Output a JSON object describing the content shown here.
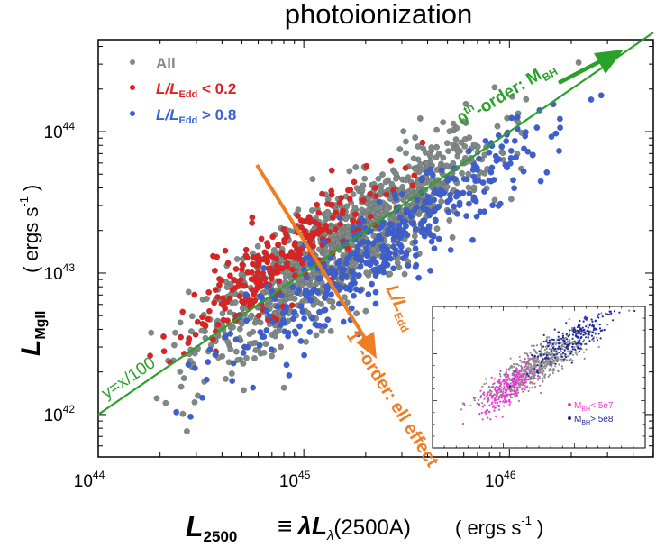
{
  "chart_data": {
    "type": "scatter",
    "title": "photoionization",
    "xlabel": {
      "main": "L",
      "sub": "2500",
      "equiv": "≡",
      "lambda": "λL",
      "lambda_sub": "λ",
      "paren": "(2500A)",
      "units": "( ergs s",
      "sup": "-1",
      "close": ")"
    },
    "ylabel": {
      "main": "L",
      "sub": "MgII",
      "units": "( ergs s",
      "sup": "-1",
      "close": ")"
    },
    "x_scale": "log",
    "y_scale": "log",
    "xlim_log10": [
      44.0,
      46.7
    ],
    "ylim_log10": [
      41.7,
      44.65
    ],
    "x_ticks": [
      {
        "base": "10",
        "exp": "44",
        "log": 44
      },
      {
        "base": "10",
        "exp": "45",
        "log": 45
      },
      {
        "base": "10",
        "exp": "46",
        "log": 46
      }
    ],
    "y_ticks": [
      {
        "base": "10",
        "exp": "42",
        "log": 42
      },
      {
        "base": "10",
        "exp": "43",
        "log": 43
      },
      {
        "base": "10",
        "exp": "44",
        "log": 44
      }
    ],
    "legend": {
      "position": "top-left",
      "entries": [
        {
          "label": "All",
          "color": "#7f8a87"
        },
        {
          "label": "L/L",
          "sub": "Edd",
          "suffix": " < 0.2",
          "color": "#e3201f"
        },
        {
          "label": "L/L",
          "sub": "Edd",
          "suffix": " > 0.8",
          "color": "#3a5fd9"
        }
      ]
    },
    "series": [
      {
        "name": "All",
        "color": "#7f8a87",
        "count": 1100,
        "center_x": 45.2,
        "spread_x": 0.36,
        "y_relation": "y = x - 2",
        "scatter_y": 0.19
      },
      {
        "name": "L/L_Edd < 0.2",
        "color": "#e3201f",
        "count": 260,
        "center_x": 44.85,
        "spread_x": 0.25,
        "y_offset": 0.2,
        "scatter_y": 0.15
      },
      {
        "name": "L/L_Edd > 0.8",
        "color": "#3a5fd9",
        "count": 420,
        "center_x": 45.4,
        "spread_x": 0.4,
        "y_offset": -0.2,
        "scatter_y": 0.15
      }
    ],
    "fit_line": {
      "label": "y=x/100",
      "color": "#2aa12a",
      "x_range": [
        44.0,
        46.7
      ]
    },
    "annotations": [
      {
        "name": "zeroth-order",
        "text": "-order: M",
        "pre": "0",
        "sup": "th",
        "sub": "BH",
        "color": "#2aa12a"
      },
      {
        "name": "first-order",
        "text": "-order:  ell effect",
        "pre": "1",
        "sup": "st",
        "color": "#f07d23"
      },
      {
        "name": "eddington-arrow-label",
        "text": "L/L",
        "sub": "Edd",
        "color": "#f07d23"
      }
    ],
    "inset": {
      "legend": [
        {
          "label": "M",
          "sub": "BH",
          "suffix": "< 5e7",
          "color": "#e93fd0"
        },
        {
          "label": "M",
          "sub": "BH",
          "suffix": "> 5e8",
          "color": "#1f2a9c"
        }
      ],
      "series": [
        {
          "name": "All",
          "color": "#8c8c8c",
          "count": 700
        },
        {
          "name": "M_BH < 5e7",
          "color": "#e93fd0",
          "count": 260
        },
        {
          "name": "M_BH > 5e8",
          "color": "#1f2a9c",
          "count": 220
        }
      ]
    }
  }
}
